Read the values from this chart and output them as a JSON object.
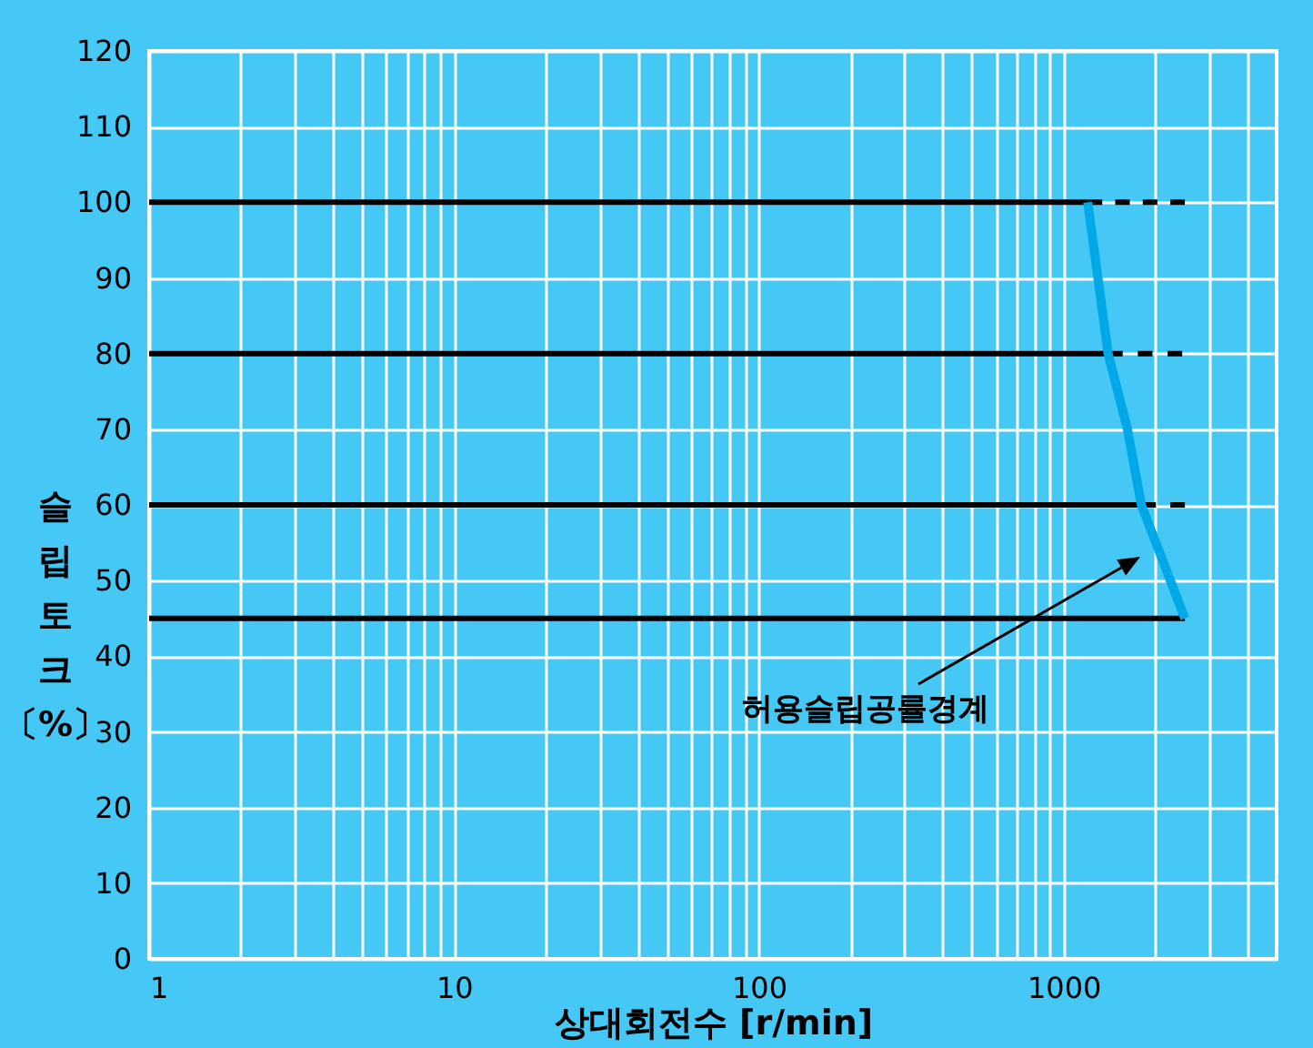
{
  "chart_data": {
    "type": "line",
    "xlabel": "상대회전수 [r/min]",
    "ylabel": "슬립토크 〔%〕",
    "log": "x",
    "grid": true,
    "line_style": "solid",
    "marker": "none",
    "xlim": [
      1,
      5000
    ],
    "ylim": [
      0,
      120
    ],
    "xticks": [
      1,
      {
        "value": 2,
        "label": null
      },
      {
        "value": 3,
        "label": null
      },
      {
        "value": 4,
        "label": null
      },
      {
        "value": 5,
        "label": null
      },
      {
        "value": 6,
        "label": null
      },
      {
        "value": 7,
        "label": null
      },
      {
        "value": 8,
        "label": null
      },
      {
        "value": 9,
        "label": null
      },
      10,
      {
        "value": 20,
        "label": null
      },
      {
        "value": 30,
        "label": null
      },
      {
        "value": 40,
        "label": null
      },
      {
        "value": 50,
        "label": null
      },
      {
        "value": 60,
        "label": null
      },
      {
        "value": 70,
        "label": null
      },
      {
        "value": 80,
        "label": null
      },
      {
        "value": 90,
        "label": null
      },
      100,
      {
        "value": 200,
        "label": null
      },
      {
        "value": 300,
        "label": null
      },
      {
        "value": 400,
        "label": null
      },
      {
        "value": 500,
        "label": null
      },
      {
        "value": 600,
        "label": null
      },
      {
        "value": 700,
        "label": null
      },
      {
        "value": 800,
        "label": null
      },
      {
        "value": 900,
        "label": null
      },
      1000,
      {
        "value": 2000,
        "label": null
      },
      {
        "value": 3000,
        "label": null
      },
      {
        "value": 4000,
        "label": null
      }
    ],
    "yticks": [
      0,
      10,
      20,
      30,
      40,
      50,
      60,
      70,
      80,
      90,
      100,
      110,
      120
    ],
    "series": [
      {
        "color": "#000000",
        "x": [
          1,
          1200
        ],
        "values": [
          100,
          100
        ]
      },
      {
        "color": "#000000",
        "x": [
          1200,
          2500
        ],
        "values": [
          100,
          100
        ],
        "line_style": "dashed"
      },
      {
        "color": "#000000",
        "x": [
          1,
          1400
        ],
        "values": [
          80,
          80
        ]
      },
      {
        "color": "#000000",
        "x": [
          1400,
          2450
        ],
        "values": [
          80,
          80
        ],
        "line_style": "dashed"
      },
      {
        "color": "#000000",
        "x": [
          1,
          1800
        ],
        "values": [
          60,
          60
        ]
      },
      {
        "color": "#000000",
        "x": [
          1800,
          2500
        ],
        "values": [
          60,
          60
        ],
        "line_style": "dashed"
      },
      {
        "color": "#000000",
        "x": [
          1,
          2500
        ],
        "values": [
          45,
          45
        ]
      },
      {
        "color": "#00a8e8",
        "x": [
          1200,
          1400,
          1620,
          1800,
          2500
        ],
        "values": [
          100,
          80,
          70,
          60,
          45
        ]
      }
    ],
    "annotations": [
      "허용슬립공률경계"
    ]
  }
}
